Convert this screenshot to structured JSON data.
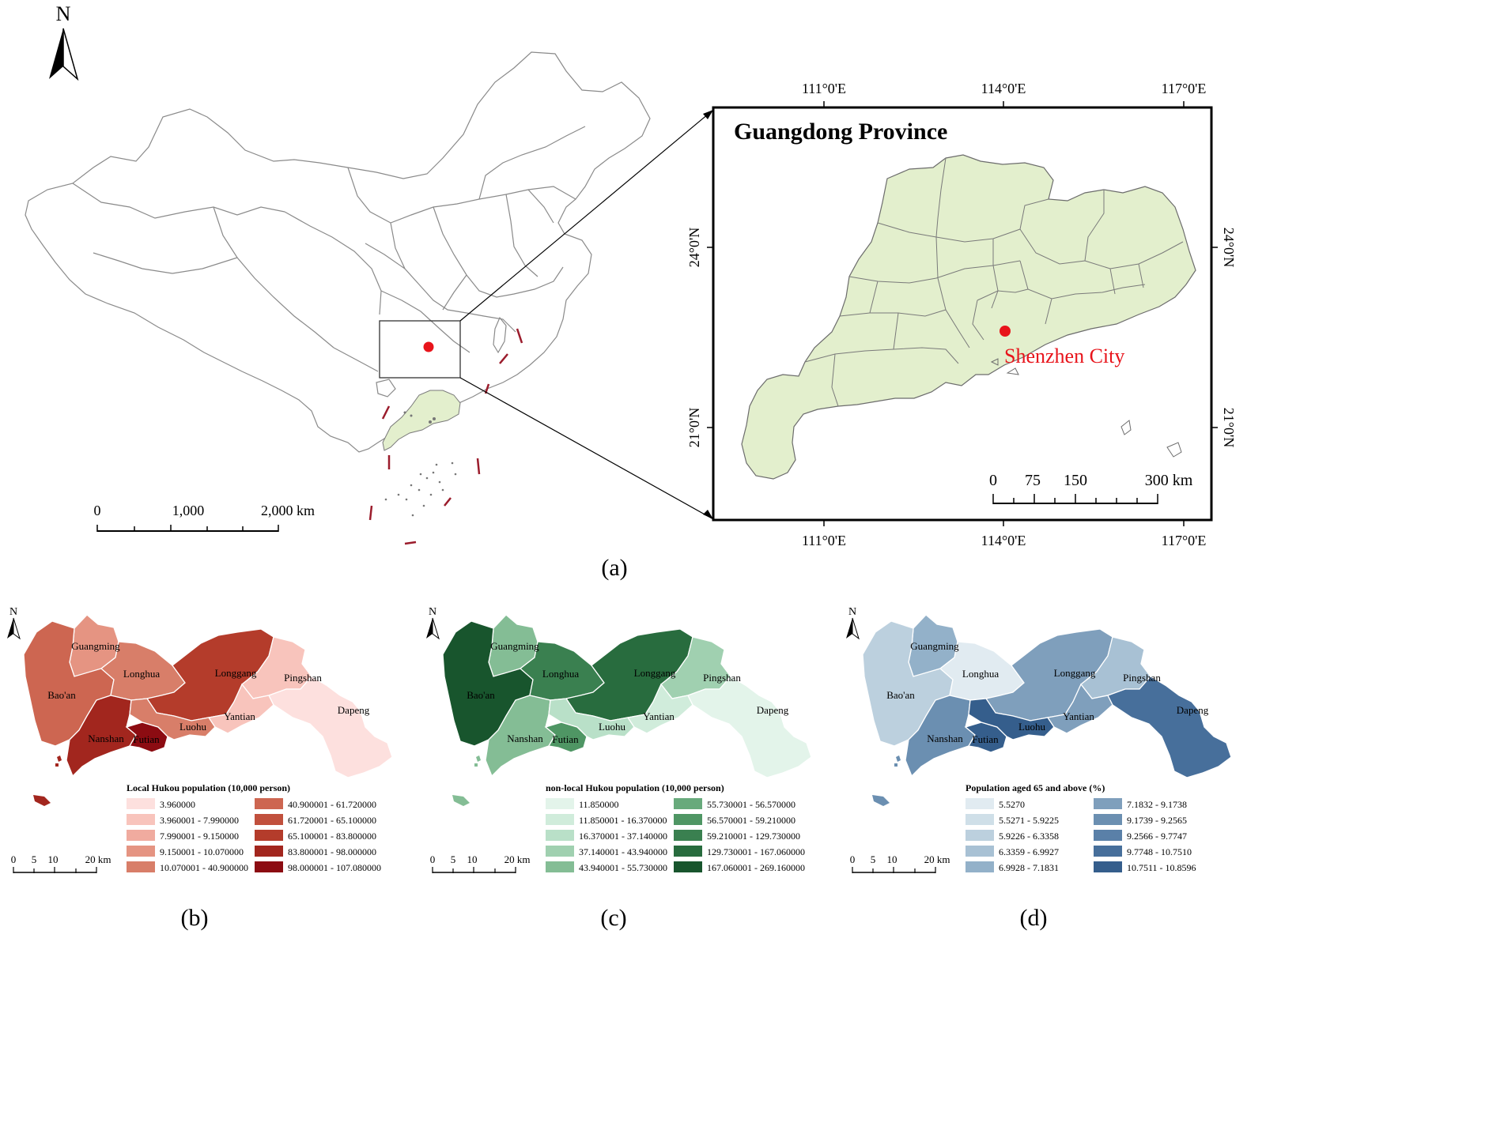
{
  "north_label": "N",
  "panel_a": {
    "caption": "(a)",
    "scale": {
      "ticks": [
        "0",
        "1,000",
        "2,000 km"
      ]
    },
    "inset": {
      "title": "Guangdong Province",
      "city_label": "Shenzhen City",
      "lon_labels": [
        "111°0'E",
        "114°0'E",
        "117°0'E"
      ],
      "lat_labels": [
        "24°0'N",
        "21°0'N"
      ],
      "scale": {
        "ticks": [
          "0",
          "75",
          "150",
          "300 km"
        ]
      }
    },
    "colors": {
      "province_fill": "#e3efcd",
      "marker": "#e8141b",
      "boundary": "#7a7a7a",
      "dashed_line": "#9b1c2c"
    }
  },
  "district_names": [
    "Guangming",
    "Longhua",
    "Longgang",
    "Pingshan",
    "Bao'an",
    "Yantian",
    "Dapeng",
    "Luohu",
    "Nanshan",
    "Futian"
  ],
  "panels": [
    {
      "id": "b",
      "caption": "(b)",
      "legend_title": "Local Hukou population (10,000 person)",
      "classes": [
        "3.960000",
        "3.960001 - 7.990000",
        "7.990001 - 9.150000",
        "9.150001 - 10.070000",
        "10.070001 - 40.900000",
        "40.900001 - 61.720000",
        "61.720001 - 65.100000",
        "65.100001 - 83.800000",
        "83.800001 - 98.000000",
        "98.000001 - 107.080000"
      ],
      "colors": [
        "#fde0de",
        "#f8c4bc",
        "#f0ab9f",
        "#e59482",
        "#d87e69",
        "#cd6651",
        "#c1503d",
        "#b43c2b",
        "#a2261e",
        "#8c0c12"
      ],
      "districts": {
        "Guangming": 3,
        "Longhua": 4,
        "Longgang": 7,
        "Pingshan": 1,
        "Bao'an": 5,
        "Yantian": 1,
        "Dapeng": 0,
        "Luohu": 4,
        "Nanshan": 8,
        "Futian": 9
      },
      "scale_ticks": [
        "0",
        "5",
        "10",
        "20 km"
      ]
    },
    {
      "id": "c",
      "caption": "(c)",
      "legend_title": "non-local Hukou population (10,000 person)",
      "classes": [
        "11.850000",
        "11.850001 - 16.370000",
        "16.370001 - 37.140000",
        "37.140001 - 43.940000",
        "43.940001 - 55.730000",
        "55.730001 - 56.570000",
        "56.570001 - 59.210000",
        "59.210001 - 129.730000",
        "129.730001 - 167.060000",
        "167.060001 - 269.160000"
      ],
      "colors": [
        "#e3f4ea",
        "#d0ecdb",
        "#b9e0c8",
        "#a0d0b0",
        "#84bd95",
        "#68aa7c",
        "#4f9664",
        "#3a8050",
        "#286c3e",
        "#18552d"
      ],
      "districts": {
        "Guangming": 4,
        "Longhua": 7,
        "Longgang": 8,
        "Pingshan": 3,
        "Bao'an": 9,
        "Yantian": 1,
        "Dapeng": 0,
        "Luohu": 2,
        "Nanshan": 4,
        "Futian": 6
      },
      "scale_ticks": [
        "0",
        "5",
        "10",
        "20 km"
      ]
    },
    {
      "id": "d",
      "caption": "(d)",
      "legend_title": "Population aged 65 and above (%)",
      "classes": [
        "5.5270",
        "5.5271 - 5.9225",
        "5.9226 - 6.3358",
        "6.3359 - 6.9927",
        "6.9928 - 7.1831",
        "7.1832 - 9.1738",
        "9.1739 - 9.2565",
        "9.2566 - 9.7747",
        "9.7748 - 10.7510",
        "10.7511 - 10.8596"
      ],
      "colors": [
        "#e1ebf1",
        "#cfdfe8",
        "#bcd0de",
        "#a8c1d4",
        "#93b1c9",
        "#7f9fbc",
        "#6b8fb1",
        "#5a80a8",
        "#476f9b",
        "#355e8c"
      ],
      "districts": {
        "Guangming": 4,
        "Longhua": 0,
        "Longgang": 5,
        "Pingshan": 3,
        "Bao'an": 2,
        "Yantian": 5,
        "Dapeng": 8,
        "Luohu": 9,
        "Nanshan": 6,
        "Futian": 9
      },
      "scale_ticks": [
        "0",
        "5",
        "10",
        "20 km"
      ]
    }
  ]
}
